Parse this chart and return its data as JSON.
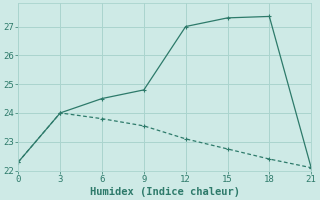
{
  "xlabel": "Humidex (Indice chaleur)",
  "line1_x": [
    0,
    3,
    6,
    9,
    12,
    15,
    18,
    21
  ],
  "line1_y": [
    22.3,
    24.0,
    24.5,
    24.8,
    27.0,
    27.3,
    27.35,
    22.1
  ],
  "line2_x": [
    0,
    3,
    6,
    9,
    12,
    15,
    18,
    21
  ],
  "line2_y": [
    22.3,
    24.0,
    23.8,
    23.55,
    23.1,
    22.75,
    22.4,
    22.1
  ],
  "line_color": "#2d7a6a",
  "bg_color": "#ceeae6",
  "grid_color": "#aad4ce",
  "xlim": [
    0,
    21
  ],
  "ylim": [
    22,
    27.8
  ],
  "xticks": [
    0,
    3,
    6,
    9,
    12,
    15,
    18,
    21
  ],
  "yticks": [
    22,
    23,
    24,
    25,
    26,
    27
  ],
  "tick_fontsize": 6.5,
  "label_fontsize": 7.5
}
